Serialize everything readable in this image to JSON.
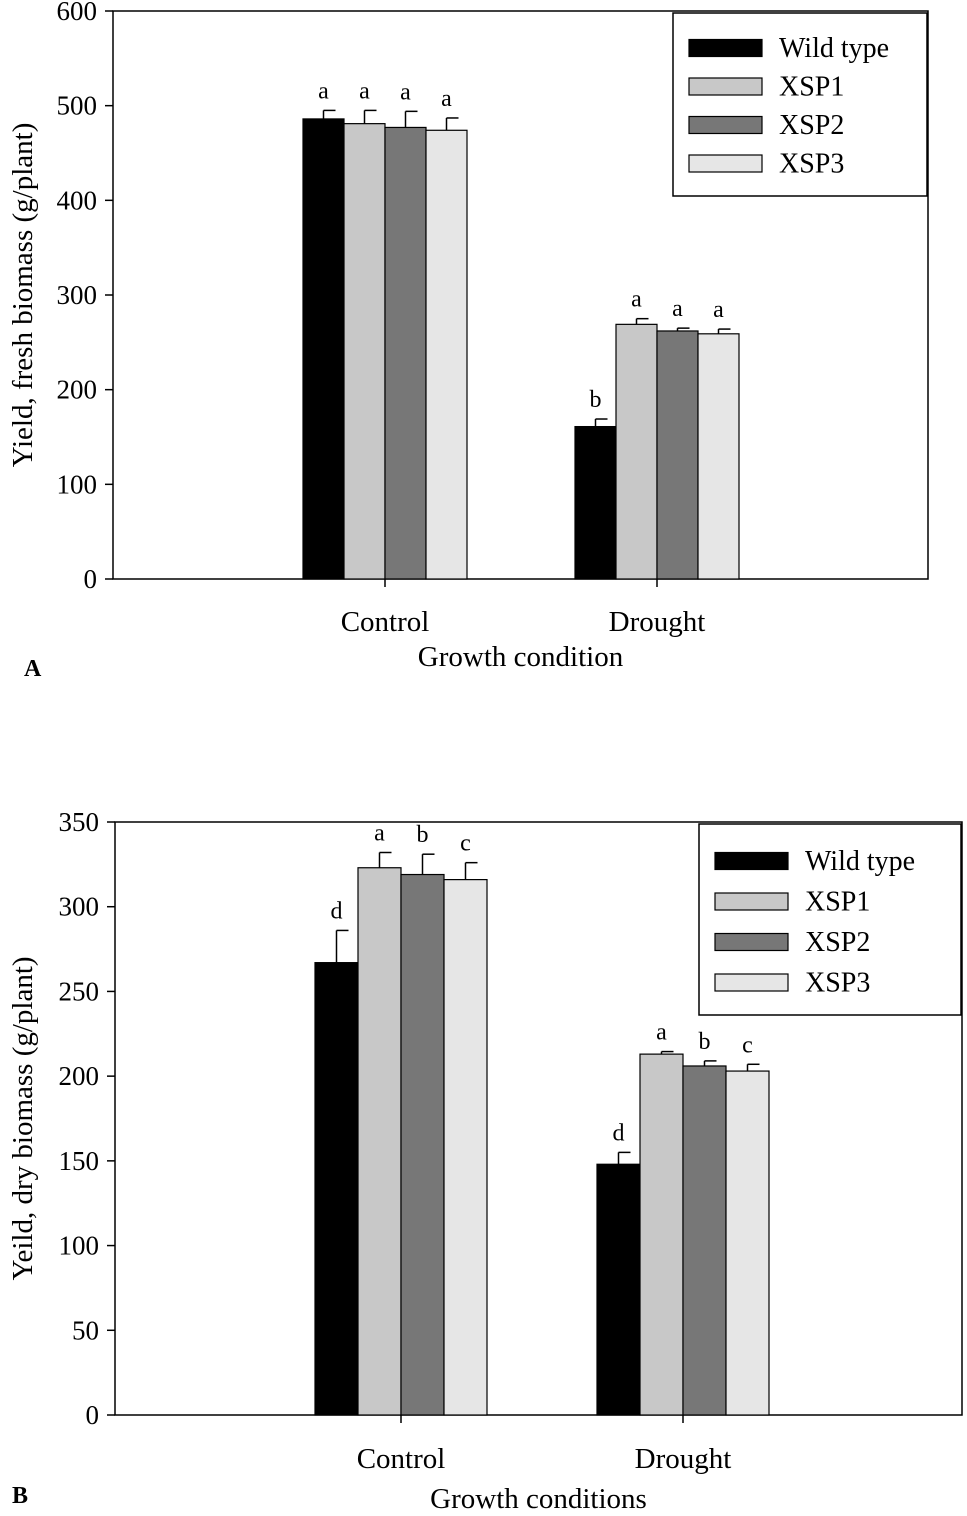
{
  "chart_data": [
    {
      "type": "bar",
      "panel_label": "A",
      "xlabel": "Growth condition",
      "ylabel": "Yield, fresh biomass (g/plant)",
      "ylim": [
        0,
        600
      ],
      "yticks": [
        0,
        100,
        200,
        300,
        400,
        500,
        600
      ],
      "categories": [
        "Control",
        "Drought"
      ],
      "series": [
        {
          "name": "Wild type",
          "color": "#000000",
          "values": [
            486,
            161
          ],
          "errors": [
            9,
            8
          ],
          "letters": [
            "a",
            "b"
          ]
        },
        {
          "name": "XSP1",
          "color": "#c8c8c8",
          "values": [
            481,
            269
          ],
          "errors": [
            14,
            6
          ],
          "letters": [
            "a",
            "a"
          ]
        },
        {
          "name": "XSP2",
          "color": "#777777",
          "values": [
            477,
            262
          ],
          "errors": [
            17,
            3
          ],
          "letters": [
            "a",
            "a"
          ]
        },
        {
          "name": "XSP3",
          "color": "#e6e6e6",
          "values": [
            474,
            259
          ],
          "errors": [
            13,
            5
          ],
          "letters": [
            "a",
            "a"
          ]
        }
      ],
      "legend_position": "top-right"
    },
    {
      "type": "bar",
      "panel_label": "B",
      "xlabel": "Growth conditions",
      "ylabel": "Yeild, dry biomass (g/plant)",
      "ylim": [
        0,
        350
      ],
      "yticks": [
        0,
        50,
        100,
        150,
        200,
        250,
        300,
        350
      ],
      "categories": [
        "Control",
        "Drought"
      ],
      "series": [
        {
          "name": "Wild type",
          "color": "#000000",
          "values": [
            267,
            148
          ],
          "errors": [
            19,
            7
          ],
          "letters": [
            "d",
            "d"
          ]
        },
        {
          "name": "XSP1",
          "color": "#c8c8c8",
          "values": [
            323,
            213
          ],
          "errors": [
            9,
            1.5
          ],
          "letters": [
            "a",
            "a"
          ]
        },
        {
          "name": "XSP2",
          "color": "#777777",
          "values": [
            319,
            206
          ],
          "errors": [
            12,
            3
          ],
          "letters": [
            "b",
            "b"
          ]
        },
        {
          "name": "XSP3",
          "color": "#e6e6e6",
          "values": [
            316,
            203
          ],
          "errors": [
            10,
            4
          ],
          "letters": [
            "c",
            "c"
          ]
        }
      ],
      "legend_position": "top-right"
    }
  ]
}
